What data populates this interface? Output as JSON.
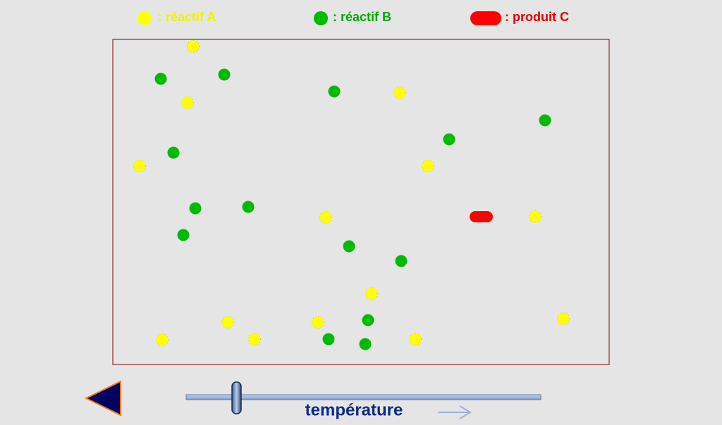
{
  "legend": {
    "reactant_a": ": réactif A",
    "reactant_b": ": réactif B",
    "product_c": ": produit C"
  },
  "slider": {
    "label": "température"
  }
}
